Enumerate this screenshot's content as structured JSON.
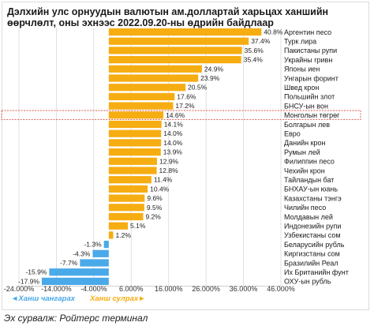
{
  "title_line1": "Дэлхийн улс орнуудын валютын ам.доллартай харьцах ханшийн",
  "title_line2": "өөрчлөлт, оны эхнээс 2022.09.20-ны өдрийн байдлаар",
  "source": "Эх сурвалж: Ройтерс терминал",
  "colors": {
    "positive": "#f6ad12",
    "negative": "#4aa9e9",
    "highlight_border": "#d9534f"
  },
  "chart_data": {
    "type": "bar",
    "orientation": "horizontal",
    "xlim": [
      -24,
      46
    ],
    "x_ticks": [
      -24,
      -14,
      -4,
      6,
      16,
      26,
      36,
      46
    ],
    "x_tick_labels": [
      "-24.000%",
      "-14.000%",
      "-4.000%",
      "6.000%",
      "16.000%",
      "26.000%",
      "36.000%",
      "46.000%"
    ],
    "grid": true,
    "highlight": "Монголын төгрөг",
    "legend": {
      "left": "◄Ханш чангарах",
      "right": "Ханш сулрах►"
    },
    "categories": [
      "Аргентин песо",
      "Турк лира",
      "Пакистаны рупи",
      "Украйны гривн",
      "Японы иен",
      "Унгарын форинт",
      "Швед крон",
      "Польшийн злот",
      "БНСУ-ын вон",
      "Монголын төгрөг",
      "Болгарын лев",
      "Евро",
      "Данийн крон",
      "Румын лей",
      "Филиппин песо",
      "Чехийн крон",
      "Тайландын бат",
      "БНХАУ-ын юань",
      "Казахстаны тэнгэ",
      "Чилийн песо",
      "Молдавын лей",
      "Индонезийн рупи",
      "Узбекистаны сом",
      "Беларусийн рубль",
      "Киргизстаны сом",
      "Бразилийн Реал",
      "Их Британийн фунт",
      "ОХУ-ын рубль"
    ],
    "values": [
      40.8,
      37.4,
      35.6,
      35.4,
      24.9,
      23.9,
      20.5,
      17.6,
      17.2,
      14.6,
      14.1,
      14.0,
      14.0,
      13.9,
      12.9,
      12.8,
      11.4,
      10.4,
      9.6,
      9.5,
      9.2,
      5.1,
      1.2,
      -1.3,
      -4.3,
      -7.7,
      -15.9,
      -17.9
    ],
    "value_labels": [
      "40.8%",
      "37.4%",
      "35.6%",
      "35.4%",
      "24.9%",
      "23.9%",
      "20.5%",
      "17.6%",
      "17.2%",
      "14.6%",
      "14.1%",
      "14.0%",
      "14.0%",
      "13.9%",
      "12.9%",
      "12.8%",
      "11.4%",
      "10.4%",
      "9.6%",
      "9.5%",
      "9.2%",
      "5.1%",
      "1.2%",
      "-1.3%",
      "-4.3%",
      "-7.7%",
      "-15.9%",
      "-17.9%"
    ]
  }
}
